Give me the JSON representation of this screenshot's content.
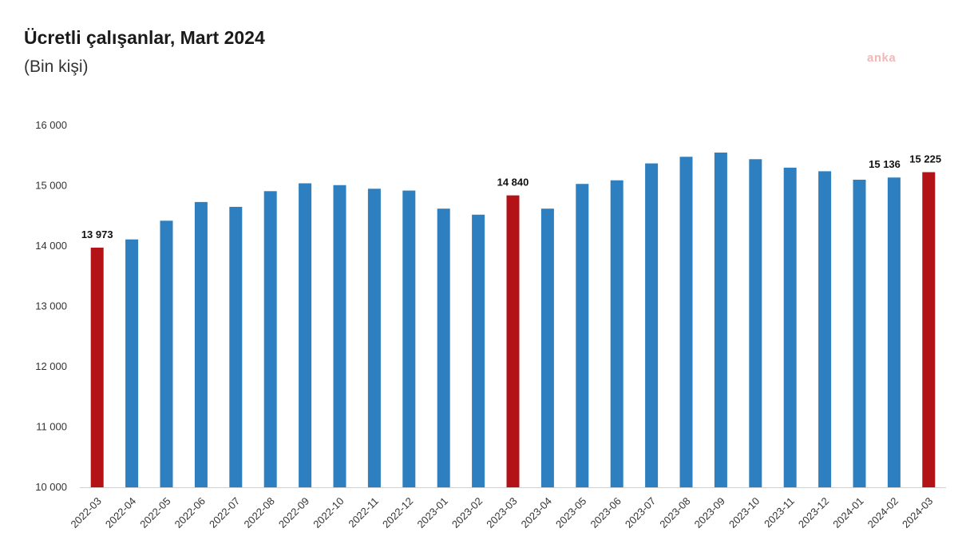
{
  "header": {
    "title": "Ücretli çalışanlar, Mart 2024",
    "subtitle": "(Bin kişi)",
    "watermark": "anka"
  },
  "chart_data": {
    "type": "bar",
    "title": "Ücretli çalışanlar, Mart 2024",
    "subtitle": "(Bin kişi)",
    "xlabel": "",
    "ylabel": "",
    "ylim": [
      10000,
      16000
    ],
    "yticks": [
      10000,
      11000,
      12000,
      13000,
      14000,
      15000,
      16000
    ],
    "ytick_labels": [
      "10 000",
      "11 000",
      "12 000",
      "13 000",
      "14 000",
      "15 000",
      "16 000"
    ],
    "grid": false,
    "categories": [
      "2022-03",
      "2022-04",
      "2022-05",
      "2022-06",
      "2022-07",
      "2022-08",
      "2022-09",
      "2022-10",
      "2022-11",
      "2022-12",
      "2023-01",
      "2023-02",
      "2023-03",
      "2023-04",
      "2023-05",
      "2023-06",
      "2023-07",
      "2023-08",
      "2023-09",
      "2023-10",
      "2023-11",
      "2023-12",
      "2024-01",
      "2024-02",
      "2024-03"
    ],
    "values": [
      13973,
      14110,
      14420,
      14730,
      14650,
      14910,
      15040,
      15010,
      14950,
      14920,
      14620,
      14520,
      14840,
      14620,
      15030,
      15090,
      15370,
      15480,
      15550,
      15440,
      15300,
      15240,
      15100,
      15136,
      15225
    ],
    "highlight_indices": [
      0,
      12,
      24
    ],
    "data_labels": [
      {
        "index": 0,
        "text": "13 973"
      },
      {
        "index": 12,
        "text": "14 840"
      },
      {
        "index": 23,
        "text": "15 136"
      },
      {
        "index": 24,
        "text": "15 225"
      }
    ],
    "colors": {
      "bar": "#2e7fbf",
      "highlight": "#b31217"
    }
  }
}
